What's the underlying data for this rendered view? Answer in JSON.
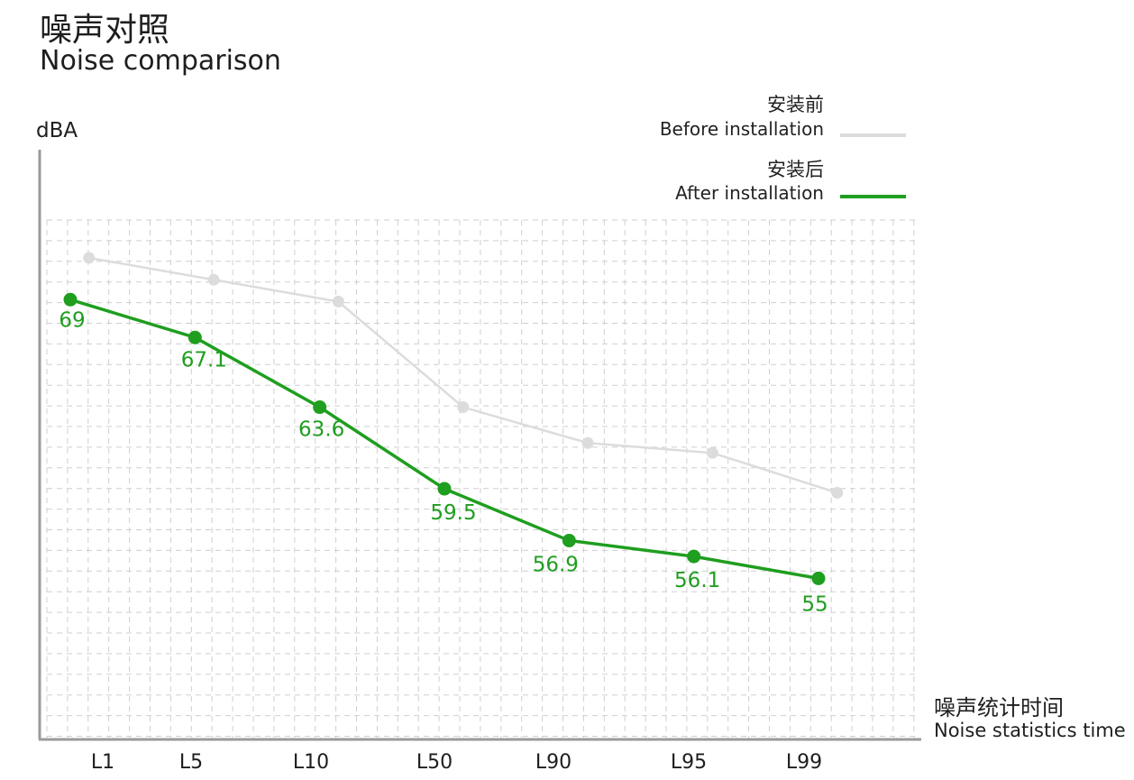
{
  "chart_data": {
    "type": "line",
    "title": "噪声对照",
    "subtitle": "Noise comparison",
    "ylabel": "dBA",
    "xlabel_cn": "噪声统计时间",
    "xlabel_en": "Noise statistics time",
    "categories": [
      "L1",
      "L5",
      "L10",
      "L50",
      "L90",
      "L95",
      "L99"
    ],
    "ylim": [
      47,
      73
    ],
    "grid": true,
    "legend_position": "top-right",
    "series": [
      {
        "name_cn": "安装前",
        "name_en": "Before installation",
        "color": "#dcdcdc",
        "x": [
          1.15,
          2.15,
          3.15,
          4.15,
          5.15,
          6.15,
          7.15
        ],
        "values": [
          71.1,
          70.0,
          68.9,
          63.6,
          61.8,
          61.3,
          59.3
        ],
        "show_labels": false
      },
      {
        "name_cn": "安装后",
        "name_en": "After installation",
        "color": "#1f9e1f",
        "x": [
          1.0,
          2.0,
          3.0,
          4.0,
          5.0,
          6.0,
          7.0
        ],
        "values": [
          69,
          67.1,
          63.6,
          59.5,
          56.9,
          56.1,
          55
        ],
        "show_labels": true
      }
    ]
  }
}
